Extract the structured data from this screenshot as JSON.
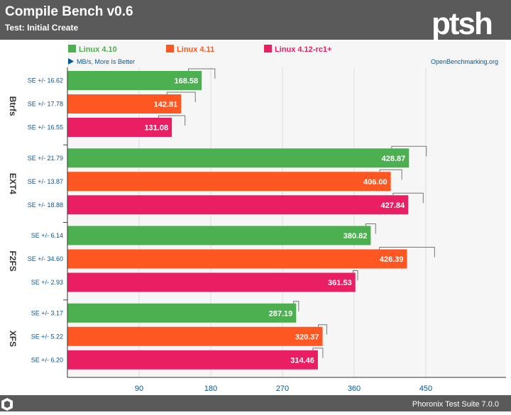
{
  "header": {
    "title": "Compile Bench v0.6",
    "subtitle": "Test: Initial Create",
    "logo_text": "ptsh"
  },
  "footer": {
    "text": "Phoronix Test Suite 7.0.0"
  },
  "colors": {
    "header_bg": "#5a5a5a",
    "header_text": "#ffffff",
    "plot_bg": "#f6f6f6",
    "axis_text": "#065695",
    "grid": "#dddddd",
    "footer_bg": "#5a5a5a",
    "series": [
      "#4caf50",
      "#ff5722",
      "#e91e63"
    ]
  },
  "chart_data": {
    "type": "bar",
    "orientation": "horizontal",
    "categories": [
      "Btrfs",
      "EXT4",
      "F2FS",
      "XFS"
    ],
    "series": [
      {
        "name": "Linux 4.10",
        "values": [
          168.58,
          428.87,
          380.82,
          287.19
        ],
        "se_labels": [
          "SE +/- 16.62",
          "SE +/- 21.79",
          "SE +/- 6.14",
          "SE +/- 3.17"
        ],
        "se": [
          16.62,
          21.79,
          6.14,
          3.17
        ]
      },
      {
        "name": "Linux 4.11",
        "values": [
          142.81,
          406.0,
          426.39,
          320.37
        ],
        "se_labels": [
          "SE +/- 17.78",
          "SE +/- 13.87",
          "SE +/- 34.60",
          "SE +/- 5.22"
        ],
        "se": [
          17.78,
          13.87,
          34.6,
          5.22
        ]
      },
      {
        "name": "Linux 4.12-rc1+",
        "values": [
          131.08,
          427.84,
          361.53,
          314.46
        ],
        "se_labels": [
          "SE +/- 16.55",
          "SE +/- 18.88",
          "SE +/- 2.93",
          "SE +/- 6.20"
        ],
        "se": [
          16.55,
          18.88,
          2.93,
          6.2
        ]
      }
    ],
    "value_labels": [
      [
        "168.58",
        "428.87",
        "380.82",
        "287.19"
      ],
      [
        "142.81",
        "406.00",
        "426.39",
        "320.37"
      ],
      [
        "131.08",
        "427.84",
        "361.53",
        "314.46"
      ]
    ],
    "units_note": "MB/s, More Is Better",
    "source": "OpenBenchmarking.org",
    "xticks": [
      90,
      180,
      270,
      360,
      450
    ],
    "xtick_labels": [
      "90",
      "180",
      "270",
      "360",
      "450"
    ],
    "xlim": [
      0,
      480
    ],
    "grid": true,
    "legend_position": "top"
  }
}
